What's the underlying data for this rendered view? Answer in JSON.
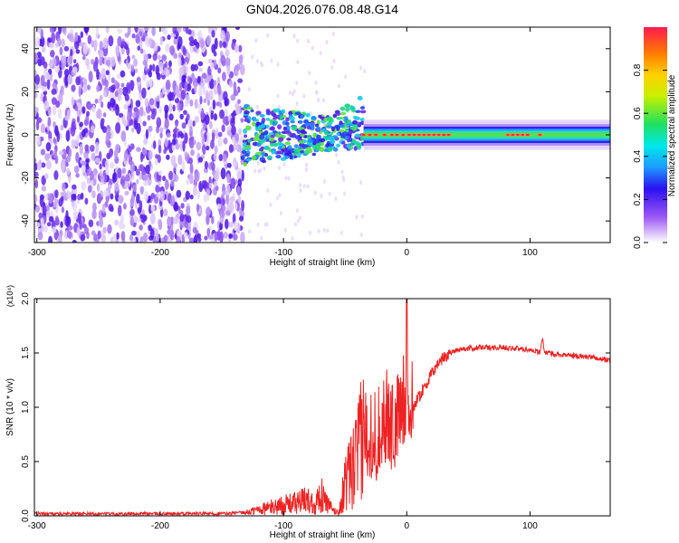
{
  "title": "GN04.2026.076.08.48.G14",
  "colors": {
    "background": "#ffffff",
    "snr_line": "#ee2222",
    "frame": "#000000"
  },
  "chart_data": [
    {
      "type": "heatmap",
      "xlabel": "Height of straight line (km)",
      "ylabel": "Frequency (Hz)",
      "xlim": [
        -302,
        165
      ],
      "ylim": [
        -50,
        50
      ],
      "x_ticks": [
        "-300",
        "-200",
        "-100",
        "0",
        "100"
      ],
      "y_ticks": [
        "-40",
        "-20",
        "0",
        "20",
        "40"
      ],
      "colorbar": {
        "label": "Normalized spectral amplitude",
        "range": [
          0,
          1
        ],
        "ticks": [
          "0.0",
          "0.2",
          "0.4",
          "0.6",
          "0.8"
        ],
        "colormap": "white-purple-blue-cyan-green-yellow-orange-red"
      },
      "features": [
        {
          "description": "diffuse purple noise",
          "x_range": [
            -302,
            -133
          ],
          "freq_range": [
            -50,
            50
          ],
          "amplitude": 0.15
        },
        {
          "description": "broadening carrier band",
          "x_range": [
            -133,
            -35
          ],
          "center_freq": 0,
          "amplitude": 0.5
        },
        {
          "description": "steady carrier band",
          "x_range": [
            -35,
            165
          ],
          "center_freq": 0,
          "amplitude": 0.85
        }
      ]
    },
    {
      "type": "line",
      "xlabel": "Height of straight line (km)",
      "ylabel": "SNR (10 * v/v)",
      "y_multiplier": "(x10⁴)",
      "xlim": [
        -302,
        165
      ],
      "ylim": [
        0,
        2.0
      ],
      "x_ticks": [
        "-300",
        "-200",
        "-100",
        "0",
        "100"
      ],
      "y_ticks": [
        "0.0",
        "0.5",
        "1.0",
        "1.5",
        "2.0"
      ],
      "series": [
        {
          "x": [
            -302,
            -250,
            -200,
            -150,
            -130,
            -120,
            -110,
            -100,
            -90,
            -80,
            -75,
            -70,
            -65,
            -60,
            -55,
            -50,
            -45,
            -40,
            -35,
            -30,
            -25,
            -20,
            -15,
            -10,
            -5,
            -2,
            0,
            2,
            5,
            10,
            15,
            20,
            25,
            30,
            40,
            50,
            60,
            70,
            80,
            90,
            100,
            105,
            108,
            110,
            112,
            115,
            120,
            130,
            140,
            150,
            160,
            165
          ],
          "y": [
            0.02,
            0.02,
            0.02,
            0.02,
            0.03,
            0.06,
            0.08,
            0.1,
            0.12,
            0.15,
            0.1,
            0.2,
            0.12,
            0.05,
            0.03,
            0.3,
            0.4,
            0.55,
            0.75,
            0.8,
            0.7,
            0.9,
            0.9,
            0.8,
            0.95,
            1.1,
            1.2,
            0.92,
            1.0,
            1.1,
            1.2,
            1.3,
            1.4,
            1.46,
            1.53,
            1.54,
            1.55,
            1.55,
            1.55,
            1.54,
            1.53,
            1.52,
            1.5,
            1.65,
            1.49,
            1.5,
            1.49,
            1.48,
            1.47,
            1.46,
            1.44,
            1.43
          ]
        }
      ]
    }
  ]
}
